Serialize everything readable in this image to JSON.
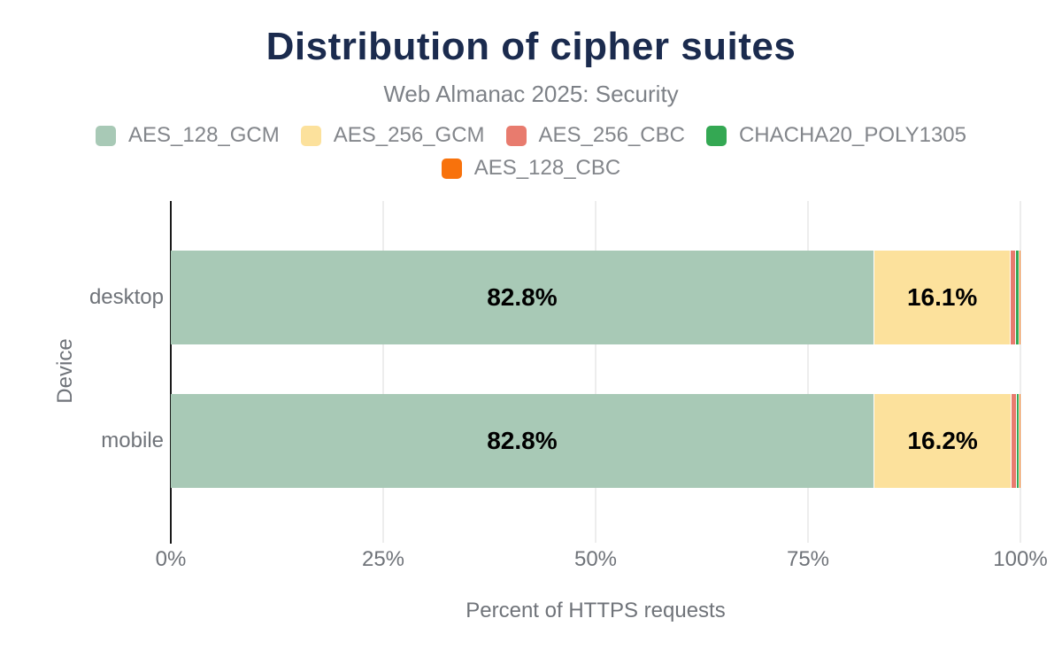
{
  "chart_data": {
    "type": "bar",
    "orientation": "horizontal-stacked",
    "title": "Distribution of cipher suites",
    "subtitle": "Web Almanac 2025: Security",
    "categories": [
      "desktop",
      "mobile"
    ],
    "series": [
      {
        "name": "AES_128_GCM",
        "color": "#a8c9b6",
        "values": [
          82.8,
          82.8
        ],
        "labels": [
          "82.8%",
          "82.8%"
        ]
      },
      {
        "name": "AES_256_GCM",
        "color": "#fce19c",
        "values": [
          16.1,
          16.2
        ],
        "labels": [
          "16.1%",
          "16.2%"
        ]
      },
      {
        "name": "AES_256_CBC",
        "color": "#e87b6e",
        "values": [
          0.6,
          0.6
        ],
        "labels": [
          "",
          ""
        ]
      },
      {
        "name": "CHACHA20_POLY1305",
        "color": "#34a853",
        "values": [
          0.4,
          0.3
        ],
        "labels": [
          "",
          ""
        ]
      },
      {
        "name": "AES_128_CBC",
        "color": "#f8720c",
        "values": [
          0.1,
          0.1
        ],
        "labels": [
          "",
          ""
        ]
      }
    ],
    "xlabel": "Percent of HTTPS requests",
    "ylabel": "Device",
    "xlim": [
      0,
      100
    ],
    "x_ticks": [
      {
        "value": 0,
        "label": "0%"
      },
      {
        "value": 25,
        "label": "25%"
      },
      {
        "value": 50,
        "label": "50%"
      },
      {
        "value": 75,
        "label": "75%"
      },
      {
        "value": 100,
        "label": "100%"
      }
    ],
    "grid": true,
    "legend_position": "top"
  },
  "colors": {
    "title": "#1b2b4e",
    "subtitle": "#7d8187",
    "axis_text": "#6f7379",
    "legend_text": "#83868b",
    "data_label": "#000000",
    "gridline": "#ededed",
    "axis_line": "#1a1a1a",
    "background": "#ffffff"
  }
}
